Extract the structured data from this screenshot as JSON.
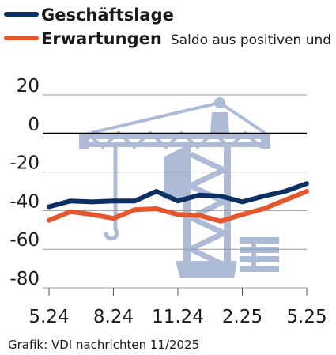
{
  "chart_data": {
    "type": "line",
    "title": "",
    "xlabel": "",
    "ylabel": "",
    "ylim": [
      -80,
      20
    ],
    "yticks": [
      20,
      0,
      -20,
      -40,
      -60,
      -80
    ],
    "xticks": [
      "5.24",
      "8.24",
      "11.24",
      "2.25",
      "5.25"
    ],
    "x": [
      "5.24",
      "6.24",
      "7.24",
      "8.24",
      "9.24",
      "10.24",
      "11.24",
      "12.24",
      "1.25",
      "2.25",
      "3.25",
      "4.25",
      "5.25"
    ],
    "series": [
      {
        "name": "Geschäftslage",
        "color": "#0c3062",
        "values": [
          -38,
          -35,
          -35.5,
          -35,
          -35,
          -30,
          -35,
          -32,
          -32.5,
          -35.5,
          -32.5,
          -30,
          -26
        ]
      },
      {
        "name": "Erwartungen",
        "color": "#e4572e",
        "values": [
          -45,
          -40.5,
          -42,
          -44,
          -39.5,
          -39,
          -42,
          -42.5,
          -45.5,
          -42,
          -39,
          -34.5,
          -30
        ]
      }
    ],
    "legend_note": "Saldo aus positiven und negativen Urteilen",
    "legend_position": "top-left",
    "grid": true,
    "zero_line_color": "#000000",
    "grid_color": "#999999",
    "background_icon": "construction-crane-icon",
    "background_icon_color": "#aebbd6"
  },
  "source": "Grafik: VDI nachrichten 11/2025"
}
